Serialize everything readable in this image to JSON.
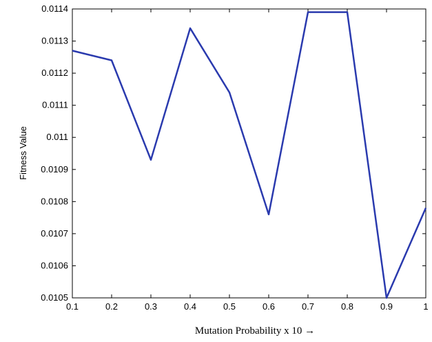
{
  "chart_data": {
    "type": "line",
    "x_label": "Mutation Probability x 10 →",
    "y_label": "Fitness Value",
    "x": [
      0.1,
      0.2,
      0.3,
      0.4,
      0.5,
      0.6,
      0.7,
      0.8,
      0.9,
      1
    ],
    "series": [
      {
        "color": "#2a3aae",
        "values": [
          0.01127,
          0.01124,
          0.01093,
          0.01134,
          0.01114,
          0.01076,
          0.01139,
          0.01139,
          0.0105,
          0.01078
        ]
      }
    ],
    "xlim": [
      0.1,
      1
    ],
    "xticks": [
      0.1,
      0.2,
      0.3,
      0.4,
      0.5,
      0.6,
      0.7,
      0.8,
      0.9,
      1
    ],
    "ylim": [
      0.0105,
      0.0114
    ],
    "yticks": [
      0.0105,
      0.0106,
      0.0107,
      0.0108,
      0.0109,
      0.011,
      0.0111,
      0.0112,
      0.0113,
      0.0114
    ]
  }
}
